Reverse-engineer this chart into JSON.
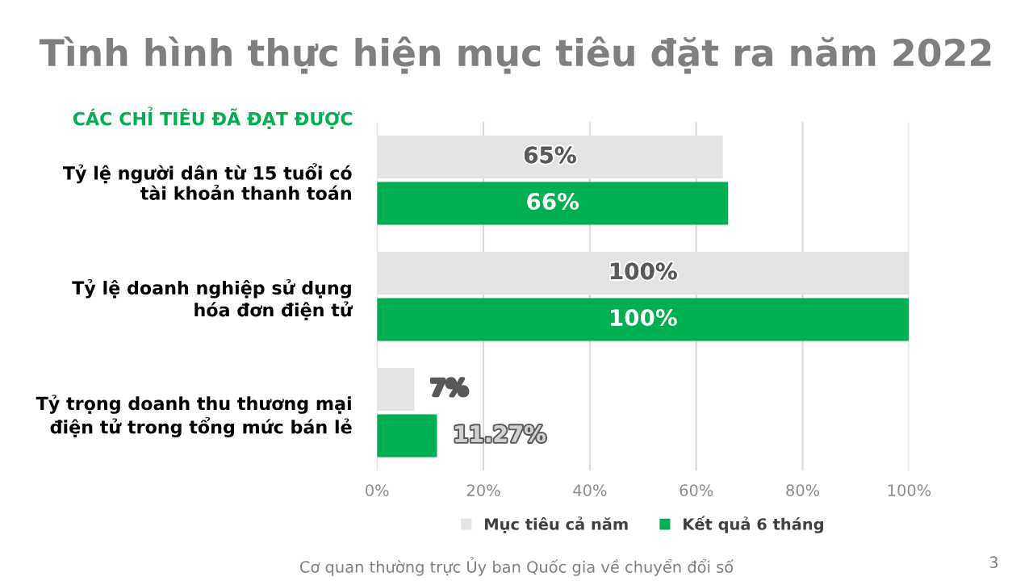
{
  "chart_data": {
    "type": "bar",
    "orientation": "horizontal",
    "title": "Tình hình thực hiện mục tiêu đặt ra năm 2022",
    "subtitle": "CÁC CHỈ TIÊU ĐÃ ĐẠT ĐƯỢC",
    "categories": [
      "Tỷ lệ người dân từ 15 tuổi có\ntài khoản thanh toán",
      "Tỷ lệ doanh nghiệp sử dụng\nhóa đơn điện tử",
      "Tỷ trọng doanh thu thương mại\nđiện tử trong tổng mức bán lẻ"
    ],
    "series": [
      {
        "name": "Mục tiêu cả năm",
        "color": "#e3e3e3",
        "values": [
          65,
          100,
          7
        ],
        "value_labels": [
          "65%",
          "100%",
          "7%"
        ]
      },
      {
        "name": "Kết quả 6 tháng",
        "color": "#00b050",
        "values": [
          66,
          100,
          11.27
        ],
        "value_labels": [
          "66%",
          "100%",
          "11.27%"
        ]
      }
    ],
    "xlim": [
      0,
      100
    ],
    "xticks": [
      {
        "value": 0,
        "label": "0%"
      },
      {
        "value": 20,
        "label": "20%"
      },
      {
        "value": 40,
        "label": "40%"
      },
      {
        "value": 60,
        "label": "60%"
      },
      {
        "value": 80,
        "label": "80%"
      },
      {
        "value": 100,
        "label": "100%"
      }
    ],
    "grid": "x",
    "legend": "bottom",
    "annotations": [
      "Cơ quan thường trực Ủy ban Quốc gia về chuyển đổi số",
      "3"
    ]
  }
}
